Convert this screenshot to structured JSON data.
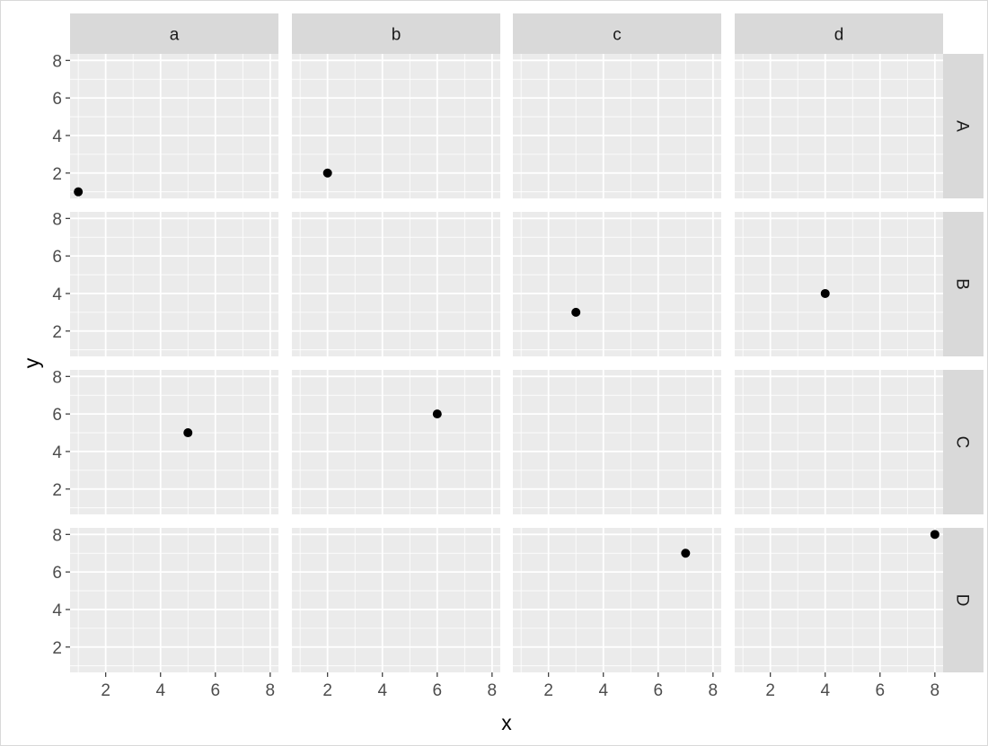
{
  "chart_data": {
    "type": "scatter",
    "facet_cols": [
      "a",
      "b",
      "c",
      "d"
    ],
    "facet_rows": [
      "A",
      "B",
      "C",
      "D"
    ],
    "xlabel": "x",
    "ylabel": "y",
    "xlim": [
      0.7,
      8.3
    ],
    "ylim": [
      0.65,
      8.35
    ],
    "x_ticks": [
      2,
      4,
      6,
      8
    ],
    "y_ticks": [
      2,
      4,
      6,
      8
    ],
    "grid": true,
    "panel_background": "#ebebeb",
    "strip_background": "#d9d9d9",
    "point_color": "#000000",
    "points": [
      {
        "col": "a",
        "row": "A",
        "x": 1,
        "y": 1
      },
      {
        "col": "b",
        "row": "A",
        "x": 2,
        "y": 2
      },
      {
        "col": "c",
        "row": "B",
        "x": 3,
        "y": 3
      },
      {
        "col": "d",
        "row": "B",
        "x": 4,
        "y": 4
      },
      {
        "col": "a",
        "row": "C",
        "x": 5,
        "y": 5
      },
      {
        "col": "b",
        "row": "C",
        "x": 6,
        "y": 6
      },
      {
        "col": "c",
        "row": "D",
        "x": 7,
        "y": 7
      },
      {
        "col": "d",
        "row": "D",
        "x": 8,
        "y": 8
      }
    ]
  }
}
